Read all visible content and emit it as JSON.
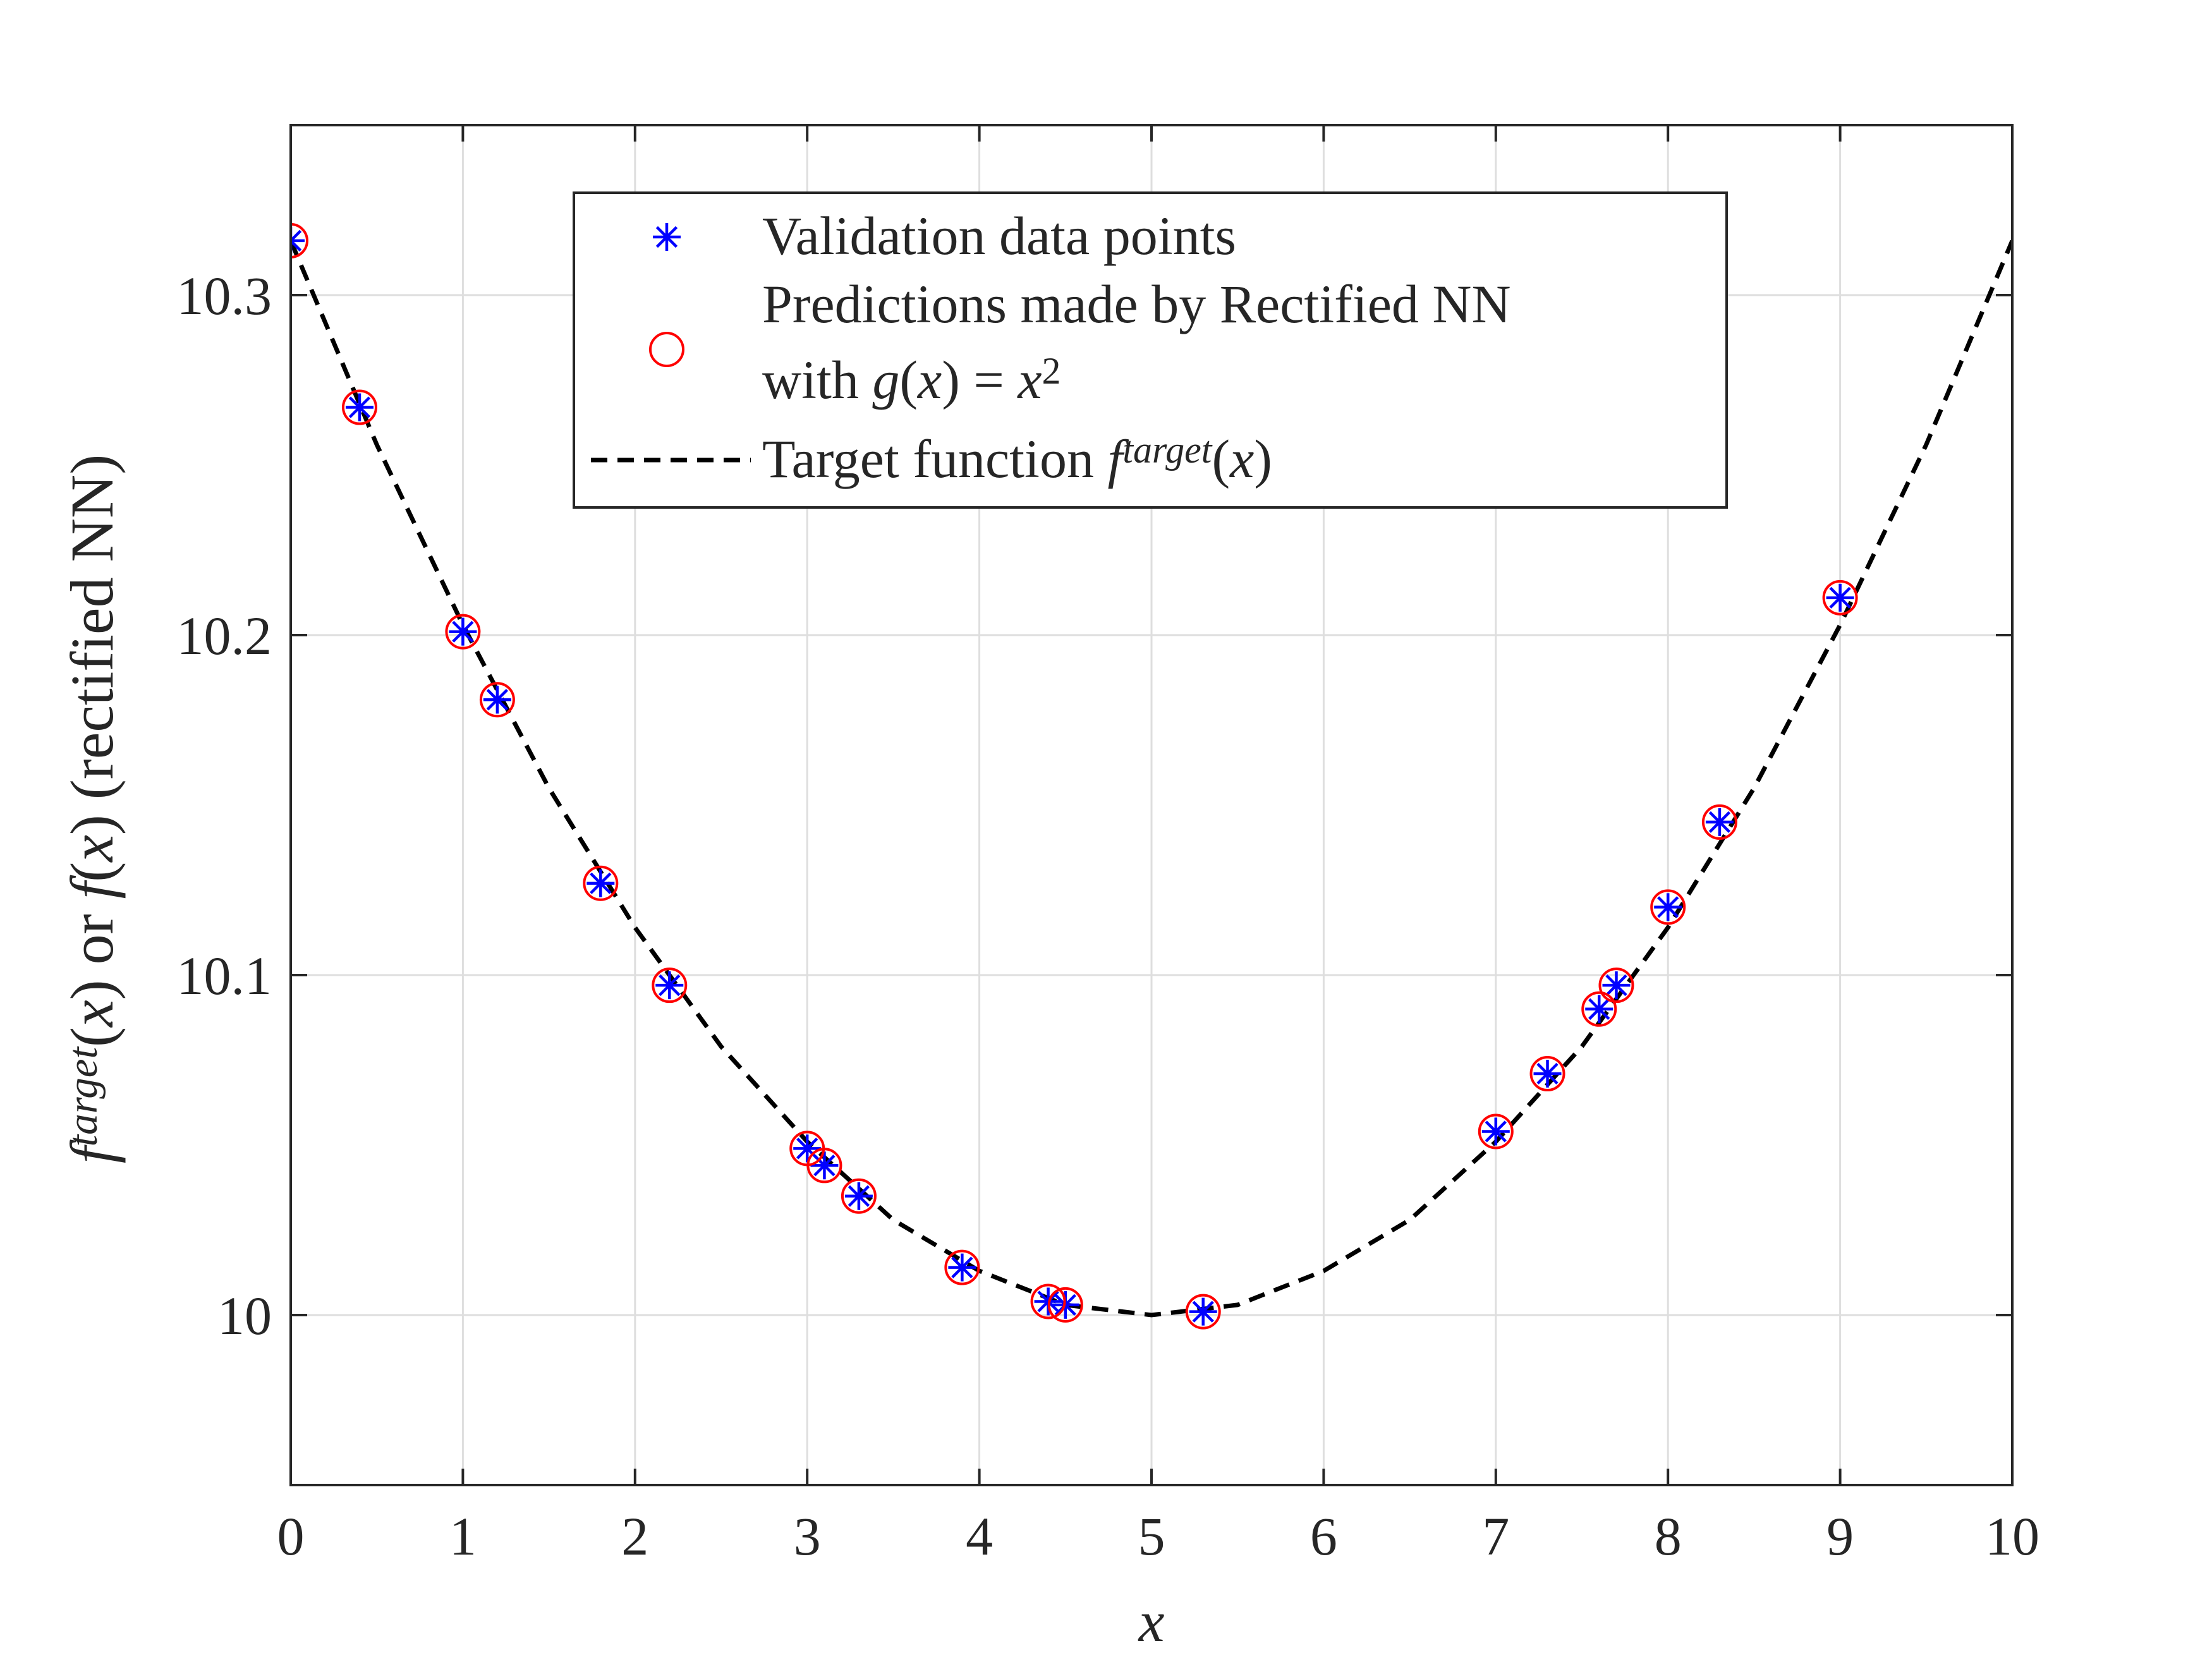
{
  "chart_data": {
    "type": "scatter",
    "xlabel": "x",
    "ylabel": {
      "parts": [
        {
          "text": "f",
          "style": "italic"
        },
        {
          "text": "target",
          "style": "italic-sup"
        },
        {
          "text": "(",
          "style": "normal"
        },
        {
          "text": "x",
          "style": "italic"
        },
        {
          "text": ") or ",
          "style": "normal"
        },
        {
          "text": "f",
          "style": "italic"
        },
        {
          "text": "(",
          "style": "normal"
        },
        {
          "text": "x",
          "style": "italic"
        },
        {
          "text": ") (rectified NN)",
          "style": "normal"
        }
      ]
    },
    "xlim": [
      0,
      10
    ],
    "ylim": [
      9.95,
      10.35
    ],
    "x_ticks": [
      {
        "value": 0,
        "label": "0"
      },
      {
        "value": 1,
        "label": "1"
      },
      {
        "value": 2,
        "label": "2"
      },
      {
        "value": 3,
        "label": "3"
      },
      {
        "value": 4,
        "label": "4"
      },
      {
        "value": 5,
        "label": "5"
      },
      {
        "value": 6,
        "label": "6"
      },
      {
        "value": 7,
        "label": "7"
      },
      {
        "value": 8,
        "label": "8"
      },
      {
        "value": 9,
        "label": "9"
      },
      {
        "value": 10,
        "label": "10"
      }
    ],
    "y_ticks": [
      {
        "value": 10.0,
        "label": "10"
      },
      {
        "value": 10.1,
        "label": "10.1"
      },
      {
        "value": 10.2,
        "label": "10.2"
      },
      {
        "value": 10.3,
        "label": "10.3"
      }
    ],
    "grid": true,
    "legend_position": "top-center",
    "series": [
      {
        "name": "Validation data points",
        "kind": "scatter",
        "marker": "asterisk",
        "color": "#0000ff",
        "points": [
          {
            "x": 0.0,
            "y": 10.316
          },
          {
            "x": 0.4,
            "y": 10.267
          },
          {
            "x": 1.0,
            "y": 10.201
          },
          {
            "x": 1.2,
            "y": 10.181
          },
          {
            "x": 1.8,
            "y": 10.127
          },
          {
            "x": 2.2,
            "y": 10.097
          },
          {
            "x": 3.0,
            "y": 10.049
          },
          {
            "x": 3.1,
            "y": 10.044
          },
          {
            "x": 3.3,
            "y": 10.035
          },
          {
            "x": 3.9,
            "y": 10.014
          },
          {
            "x": 4.4,
            "y": 10.004
          },
          {
            "x": 4.5,
            "y": 10.003
          },
          {
            "x": 5.3,
            "y": 10.001
          },
          {
            "x": 7.0,
            "y": 10.054
          },
          {
            "x": 7.3,
            "y": 10.071
          },
          {
            "x": 7.6,
            "y": 10.09
          },
          {
            "x": 7.7,
            "y": 10.097
          },
          {
            "x": 8.0,
            "y": 10.12
          },
          {
            "x": 8.3,
            "y": 10.145
          },
          {
            "x": 9.0,
            "y": 10.211
          }
        ]
      },
      {
        "name_parts": [
          {
            "text": "Predictions made by Rectified NN",
            "line": 1,
            "style": "normal"
          },
          {
            "text": "with ",
            "line": 2,
            "style": "normal"
          },
          {
            "text": "g",
            "line": 2,
            "style": "italic"
          },
          {
            "text": "(",
            "line": 2,
            "style": "normal"
          },
          {
            "text": "x",
            "line": 2,
            "style": "italic"
          },
          {
            "text": ") = ",
            "line": 2,
            "style": "normal"
          },
          {
            "text": "x",
            "line": 2,
            "style": "italic"
          },
          {
            "text": "2",
            "line": 2,
            "style": "sup"
          }
        ],
        "kind": "scatter",
        "marker": "circle",
        "color": "#ff0000",
        "points": [
          {
            "x": 0.0,
            "y": 10.316
          },
          {
            "x": 0.4,
            "y": 10.267
          },
          {
            "x": 1.0,
            "y": 10.201
          },
          {
            "x": 1.2,
            "y": 10.181
          },
          {
            "x": 1.8,
            "y": 10.127
          },
          {
            "x": 2.2,
            "y": 10.097
          },
          {
            "x": 3.0,
            "y": 10.049
          },
          {
            "x": 3.1,
            "y": 10.044
          },
          {
            "x": 3.3,
            "y": 10.035
          },
          {
            "x": 3.9,
            "y": 10.014
          },
          {
            "x": 4.4,
            "y": 10.004
          },
          {
            "x": 4.5,
            "y": 10.003
          },
          {
            "x": 5.3,
            "y": 10.001
          },
          {
            "x": 7.0,
            "y": 10.054
          },
          {
            "x": 7.3,
            "y": 10.071
          },
          {
            "x": 7.6,
            "y": 10.09
          },
          {
            "x": 7.7,
            "y": 10.097
          },
          {
            "x": 8.0,
            "y": 10.12
          },
          {
            "x": 8.3,
            "y": 10.145
          },
          {
            "x": 9.0,
            "y": 10.211
          }
        ]
      },
      {
        "name_parts": [
          {
            "text": "Target function ",
            "style": "normal"
          },
          {
            "text": "f",
            "style": "italic"
          },
          {
            "text": "target",
            "style": "italic-sup"
          },
          {
            "text": "(",
            "style": "normal"
          },
          {
            "text": "x",
            "style": "italic"
          },
          {
            "text": ")",
            "style": "normal"
          }
        ],
        "kind": "line",
        "style": "dashed",
        "color": "#000000",
        "x": [
          0,
          0.5,
          1,
          1.5,
          2,
          2.5,
          3,
          3.5,
          4,
          4.5,
          5,
          5.5,
          6,
          6.5,
          7,
          7.5,
          8,
          8.5,
          9,
          9.5,
          10
        ],
        "y": [
          10.316,
          10.256,
          10.203,
          10.155,
          10.114,
          10.079,
          10.051,
          10.028,
          10.013,
          10.003,
          10.0,
          10.003,
          10.013,
          10.028,
          10.051,
          10.079,
          10.114,
          10.155,
          10.203,
          10.256,
          10.316
        ]
      }
    ]
  }
}
